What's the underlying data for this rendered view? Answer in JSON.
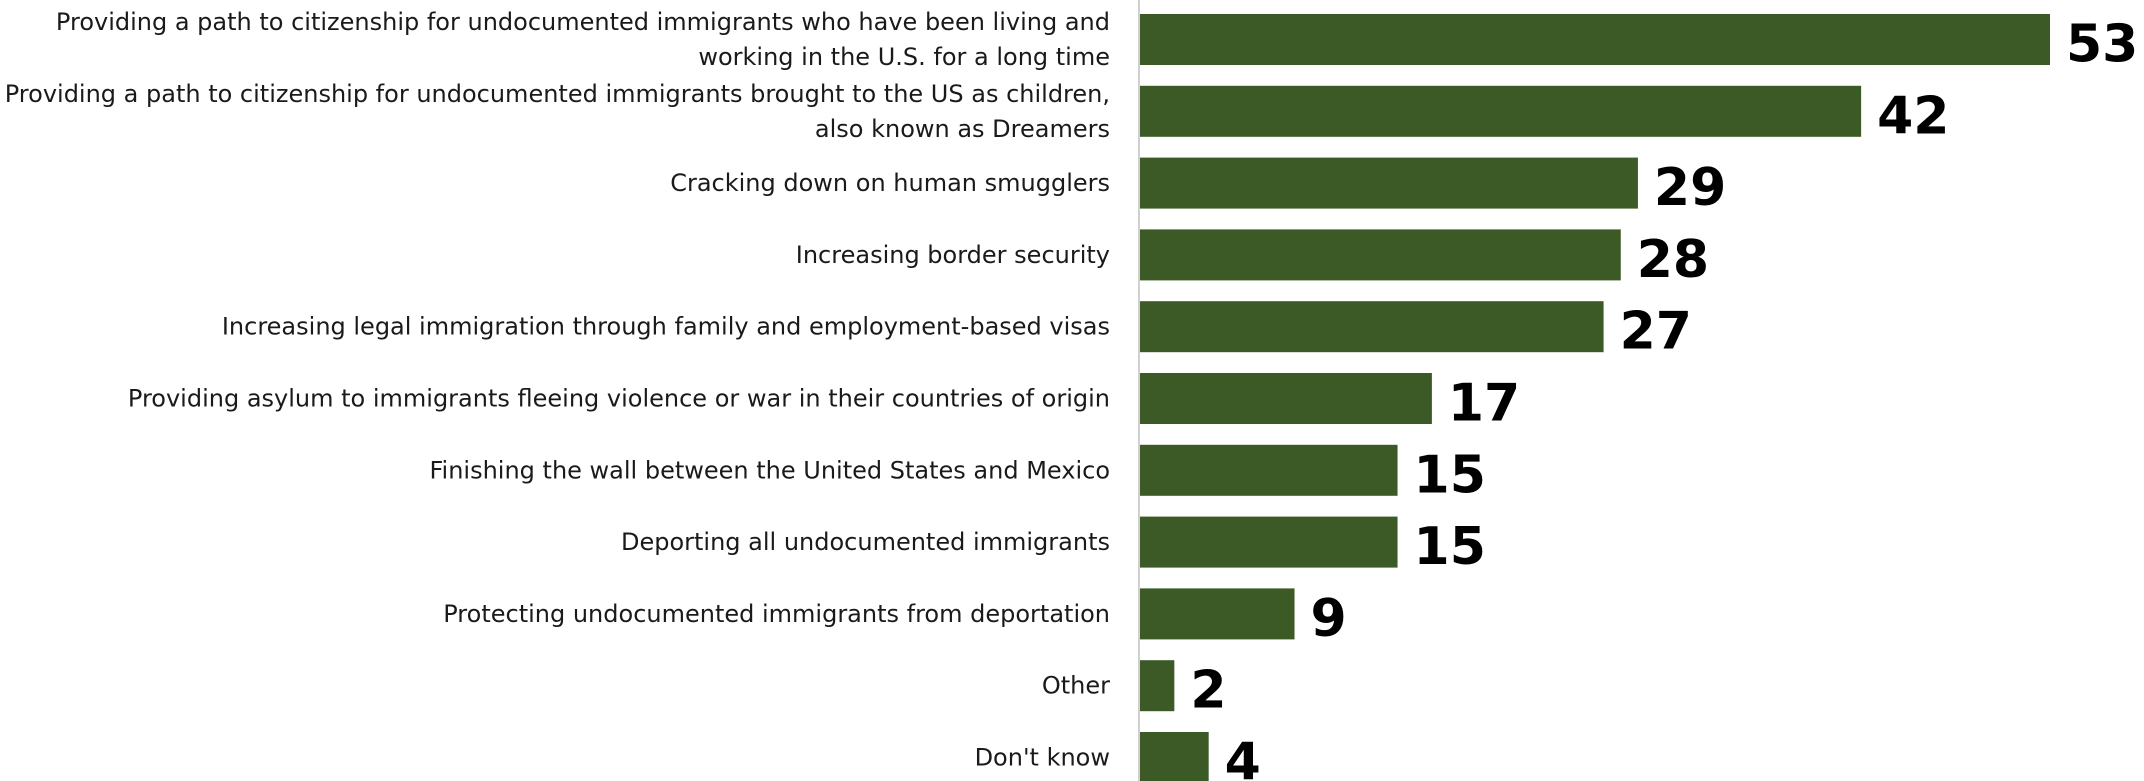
{
  "chart_data": {
    "type": "bar",
    "orientation": "horizontal",
    "categories": [
      [
        "Providing a path to citizenship for undocumented immigrants who have been living and",
        "working in the U.S. for a long time"
      ],
      [
        "Providing a path to citizenship for undocumented immigrants brought to the US as children,",
        "also known as Dreamers"
      ],
      [
        "Cracking down on human smugglers"
      ],
      [
        "Increasing border security"
      ],
      [
        "Increasing legal immigration through family and employment-based visas"
      ],
      [
        "Providing asylum to immigrants fleeing violence or war in their countries of origin"
      ],
      [
        "Finishing the wall between the United States and Mexico"
      ],
      [
        "Deporting all undocumented immigrants"
      ],
      [
        "Protecting undocumented immigrants from deportation"
      ],
      [
        "Other"
      ],
      [
        "Don't know"
      ]
    ],
    "values": [
      53,
      42,
      29,
      28,
      27,
      17,
      15,
      15,
      9,
      2,
      4
    ],
    "value_labels": [
      "53",
      "42",
      "29",
      "28",
      "27",
      "17",
      "15",
      "15",
      "9",
      "2",
      "4"
    ],
    "title": "",
    "xlabel": "",
    "ylabel": "",
    "xlim": [
      0,
      53
    ],
    "grid": false,
    "legend": "none",
    "colors": {
      "bar": "#3b5a26",
      "axis": "#d0d0d0",
      "label": "#1a1a1a",
      "value": "#000000"
    }
  }
}
